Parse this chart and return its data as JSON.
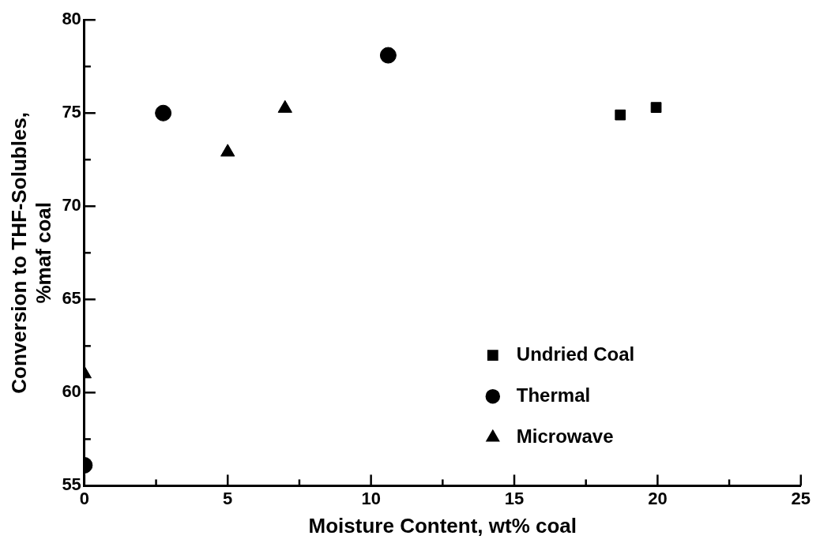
{
  "chart_data": {
    "type": "scatter",
    "xlabel": "Moisture Content, wt% coal",
    "ylabel": "Conversion to THF-Solubles,\n%maf coal",
    "xlim": [
      0,
      25
    ],
    "ylim": [
      55,
      80
    ],
    "xticks": [
      0,
      {
        "value": 2.5,
        "label": null
      },
      5,
      {
        "value": 7.5,
        "label": null
      },
      10,
      {
        "value": 12.5,
        "label": null
      },
      15,
      {
        "value": 17.5,
        "label": null
      },
      20,
      {
        "value": 22.5,
        "label": null
      },
      25
    ],
    "yticks": [
      55,
      {
        "value": 57.5,
        "label": null
      },
      60,
      {
        "value": 62.5,
        "label": null
      },
      65,
      {
        "value": 67.5,
        "label": null
      },
      70,
      {
        "value": 72.5,
        "label": null
      },
      75,
      {
        "value": 77.5,
        "label": null
      },
      80
    ],
    "grid": false,
    "legend": "bottom right",
    "series": [
      {
        "name": "Undried Coal",
        "color": "#000000",
        "marker": "square",
        "x": [
          18.7,
          19.95
        ],
        "values": [
          74.9,
          75.3
        ]
      },
      {
        "name": "Thermal",
        "color": "#000000",
        "marker": "circle",
        "x": [
          0,
          2.75,
          10.6
        ],
        "values": [
          56.1,
          75.0,
          78.1
        ]
      },
      {
        "name": "Microwave",
        "color": "#000000",
        "marker": "triangle",
        "x": [
          0,
          5,
          7
        ],
        "values": [
          61.0,
          72.9,
          75.25
        ]
      }
    ]
  }
}
